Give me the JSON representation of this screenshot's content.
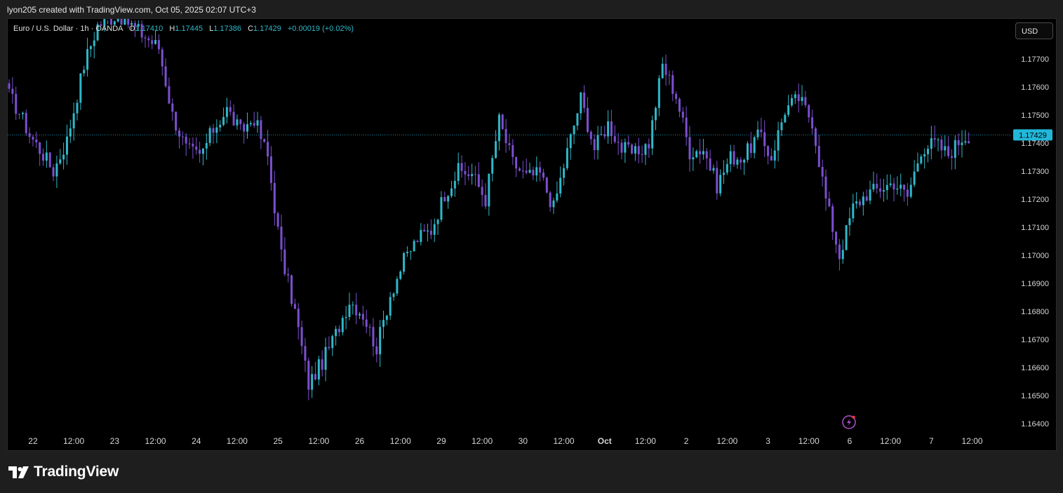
{
  "header": {
    "attribution": "lyon205 created with TradingView.com, Oct 05, 2025 02:07 UTC+3"
  },
  "legend": {
    "symbol": "Euro / U.S. Dollar · 1h · OANDA",
    "o_label": "O",
    "o_value": "1.17410",
    "h_label": "H",
    "h_value": "1.17445",
    "l_label": "L",
    "l_value": "1.17386",
    "c_label": "C",
    "c_value": "1.17429",
    "change": "+0.00019 (+0.02%)"
  },
  "currency_button": "USD",
  "footer": {
    "logo_text": "TradingView"
  },
  "colors": {
    "up": "#2fb8c9",
    "down": "#7c4fcf",
    "price_tag": "#22b7d8",
    "background": "#000000"
  },
  "chart_data": {
    "type": "candlestick",
    "symbol": "Euro / U.S. Dollar",
    "interval": "1h",
    "source": "OANDA",
    "currency": "USD",
    "last_price": "1.17429",
    "ylim": [
      1.1637,
      1.1786
    ],
    "y_ticks": [
      "1.17700",
      "1.17600",
      "1.17500",
      "1.17400",
      "1.17300",
      "1.17200",
      "1.17100",
      "1.17000",
      "1.16900",
      "1.16800",
      "1.16700",
      "1.16600",
      "1.16500",
      "1.16400"
    ],
    "x_ticks": [
      "22",
      "12:00",
      "23",
      "12:00",
      "24",
      "12:00",
      "25",
      "12:00",
      "26",
      "12:00",
      "29",
      "12:00",
      "30",
      "12:00",
      "Oct",
      "12:00",
      "2",
      "12:00",
      "3",
      "12:00",
      "6",
      "12:00",
      "7",
      "12:00"
    ],
    "bars_per_day": 24,
    "first_bar": "Sep 22 00:00",
    "anchors": [
      [
        0,
        1.1757
      ],
      [
        3,
        1.1751
      ],
      [
        6,
        1.1743
      ],
      [
        10,
        1.1736
      ],
      [
        13,
        1.173
      ],
      [
        17,
        1.1741
      ],
      [
        22,
        1.1768
      ],
      [
        26,
        1.1782
      ],
      [
        32,
        1.1786
      ],
      [
        44,
        1.1774
      ],
      [
        48,
        1.175
      ],
      [
        52,
        1.1738
      ],
      [
        56,
        1.1735
      ],
      [
        60,
        1.1745
      ],
      [
        64,
        1.1752
      ],
      [
        68,
        1.1744
      ],
      [
        72,
        1.1749
      ],
      [
        76,
        1.1735
      ],
      [
        80,
        1.17
      ],
      [
        84,
        1.168
      ],
      [
        88,
        1.1654
      ],
      [
        92,
        1.1662
      ],
      [
        96,
        1.1672
      ],
      [
        100,
        1.1684
      ],
      [
        104,
        1.1679
      ],
      [
        108,
        1.1667
      ],
      [
        112,
        1.1686
      ],
      [
        116,
        1.1698
      ],
      [
        120,
        1.1706
      ],
      [
        124,
        1.1709
      ],
      [
        128,
        1.1722
      ],
      [
        132,
        1.173
      ],
      [
        136,
        1.1729
      ],
      [
        140,
        1.172
      ],
      [
        144,
        1.1748
      ],
      [
        148,
        1.1733
      ],
      [
        152,
        1.1728
      ],
      [
        156,
        1.1729
      ],
      [
        160,
        1.1717
      ],
      [
        164,
        1.1737
      ],
      [
        168,
        1.1756
      ],
      [
        172,
        1.1738
      ],
      [
        176,
        1.1747
      ],
      [
        180,
        1.1738
      ],
      [
        184,
        1.1736
      ],
      [
        188,
        1.174
      ],
      [
        192,
        1.1768
      ],
      [
        196,
        1.1757
      ],
      [
        200,
        1.1737
      ],
      [
        204,
        1.1738
      ],
      [
        208,
        1.1725
      ],
      [
        212,
        1.1735
      ],
      [
        216,
        1.1735
      ],
      [
        220,
        1.1743
      ],
      [
        224,
        1.1735
      ],
      [
        228,
        1.1752
      ],
      [
        232,
        1.1756
      ],
      [
        236,
        1.1748
      ],
      [
        240,
        1.172
      ],
      [
        244,
        1.17
      ],
      [
        248,
        1.1717
      ],
      [
        252,
        1.1722
      ],
      [
        256,
        1.1724
      ],
      [
        260,
        1.1726
      ],
      [
        264,
        1.1721
      ],
      [
        268,
        1.1738
      ],
      [
        272,
        1.174
      ],
      [
        276,
        1.1736
      ],
      [
        280,
        1.1742
      ],
      [
        282,
        1.1743
      ]
    ]
  }
}
